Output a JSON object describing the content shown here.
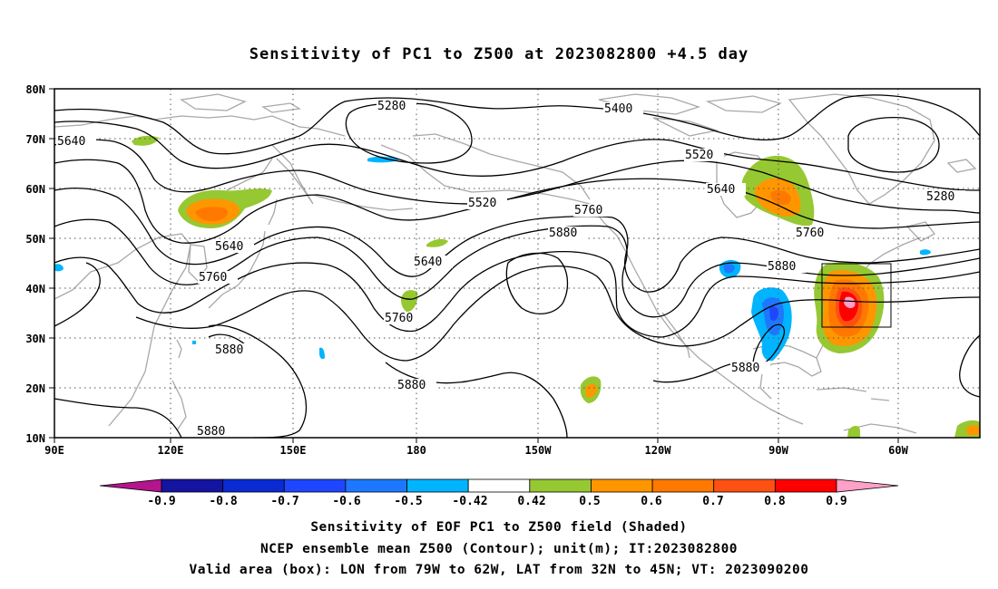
{
  "title": "Sensitivity of PC1 to Z500 at 2023082800 +4.5 day",
  "captions": {
    "line1": "Sensitivity of EOF PC1 to Z500 field (Shaded)",
    "line2": "NCEP ensemble mean Z500 (Contour); unit(m); IT:2023082800",
    "line3": "Valid area (box): LON from 79W to 62W, LAT from 32N to 45N; VT: 2023090200"
  },
  "map": {
    "lon_ticks": [
      "90E",
      "120E",
      "150E",
      "180",
      "150W",
      "120W",
      "90W",
      "60W"
    ],
    "lat_ticks": [
      "80N",
      "70N",
      "60N",
      "50N",
      "40N",
      "30N",
      "20N",
      "10N"
    ],
    "extent": {
      "lon_min": 90,
      "lon_max": 320,
      "lat_min": 10,
      "lat_max": 80
    },
    "valid_box": {
      "lon_min": -79,
      "lon_max": -62,
      "lat_min": 32,
      "lat_max": 45
    },
    "contour_labels": [
      "5280",
      "5400",
      "5640",
      "5520",
      "5520",
      "5640",
      "5760",
      "5880",
      "5640",
      "5760",
      "5640",
      "5760",
      "5880",
      "5280",
      "5760",
      "5880",
      "5880",
      "5880",
      "5880",
      "5880"
    ]
  },
  "colorbar": {
    "labels": [
      "-0.9",
      "-0.8",
      "-0.7",
      "-0.6",
      "-0.5",
      "-0.42",
      "0.42",
      "0.5",
      "0.6",
      "0.7",
      "0.8",
      "0.9"
    ],
    "colors": [
      "#1414a0",
      "#0a2ad2",
      "#1e46ff",
      "#1e78ff",
      "#00b4ff",
      "#ffffff",
      "#96c832",
      "#ff9600",
      "#ff7800",
      "#ff5014",
      "#ff0000"
    ],
    "left_arrow_color": "#b4148c",
    "right_arrow_color": "#ffa0c8"
  }
}
